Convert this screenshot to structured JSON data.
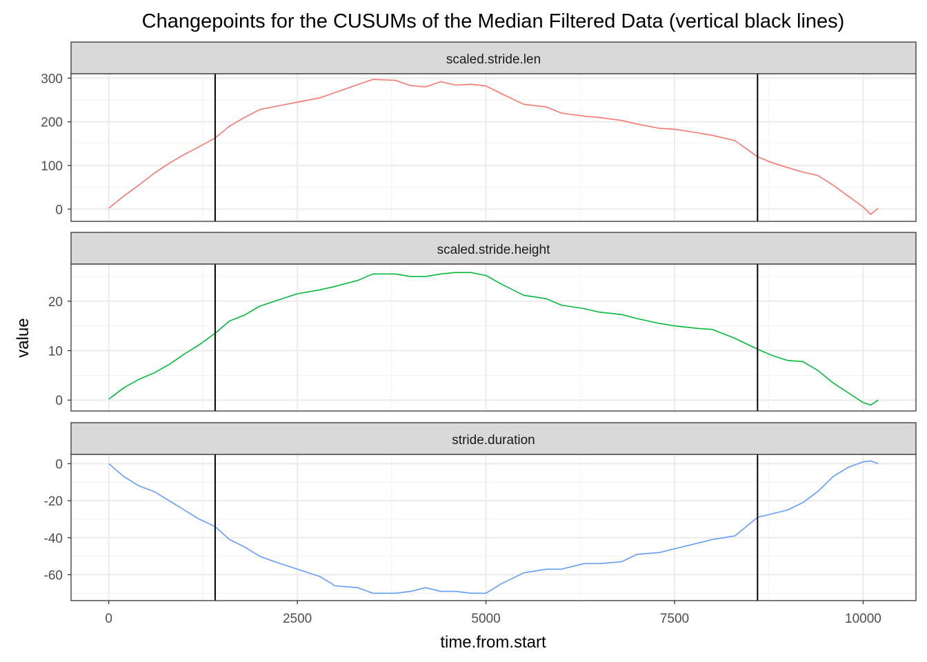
{
  "chart_data": {
    "type": "line",
    "title": "Changepoints for the CUSUMs of the Median Filtered Data (vertical black lines)",
    "xlabel": "time.from.start",
    "ylabel": "value",
    "x_ticks": [
      0,
      2500,
      5000,
      7500,
      10000
    ],
    "xlim": [
      -500,
      10700
    ],
    "changepoints": [
      1410,
      8600
    ],
    "grid": true,
    "theme": "bw",
    "facets": [
      {
        "name": "scaled.stride.len",
        "color": "#F8766D",
        "ylim": [
          -28,
          310
        ],
        "y_ticks": [
          0,
          100,
          200,
          300
        ],
        "x": [
          0,
          200,
          400,
          600,
          800,
          1000,
          1200,
          1410,
          1600,
          1800,
          2000,
          2200,
          2500,
          2800,
          3000,
          3300,
          3500,
          3800,
          4000,
          4200,
          4400,
          4600,
          4800,
          5000,
          5200,
          5500,
          5800,
          6000,
          6300,
          6500,
          6800,
          7000,
          7300,
          7500,
          7800,
          8000,
          8300,
          8600,
          8800,
          9000,
          9200,
          9400,
          9600,
          9800,
          10000,
          10100,
          10200
        ],
        "y": [
          2,
          30,
          55,
          82,
          105,
          125,
          143,
          163,
          190,
          210,
          228,
          235,
          245,
          255,
          267,
          285,
          297,
          295,
          283,
          280,
          292,
          284,
          286,
          282,
          265,
          240,
          234,
          220,
          213,
          210,
          203,
          195,
          185,
          183,
          175,
          169,
          157,
          120,
          106,
          95,
          85,
          77,
          55,
          30,
          5,
          -12,
          2
        ]
      },
      {
        "name": "scaled.stride.height",
        "color": "#00BA38",
        "ylim": [
          -2.2,
          27.5
        ],
        "y_ticks": [
          0,
          10,
          20
        ],
        "x": [
          0,
          200,
          400,
          600,
          800,
          1000,
          1200,
          1410,
          1600,
          1800,
          2000,
          2200,
          2500,
          2800,
          3000,
          3300,
          3500,
          3800,
          4000,
          4200,
          4400,
          4600,
          4800,
          5000,
          5200,
          5500,
          5800,
          6000,
          6300,
          6500,
          6800,
          7000,
          7300,
          7500,
          7800,
          8000,
          8300,
          8600,
          8800,
          9000,
          9200,
          9400,
          9600,
          9800,
          10000,
          10100,
          10200
        ],
        "y": [
          0.2,
          2.5,
          4.2,
          5.5,
          7.2,
          9.3,
          11.2,
          13.5,
          16,
          17.2,
          19,
          20,
          21.5,
          22.3,
          23,
          24.2,
          25.5,
          25.5,
          25,
          25,
          25.5,
          25.8,
          25.8,
          25.2,
          23.5,
          21.2,
          20.5,
          19.2,
          18.5,
          17.8,
          17.3,
          16.5,
          15.5,
          15,
          14.5,
          14.3,
          12.5,
          10.3,
          9,
          8,
          7.8,
          6,
          3.5,
          1.5,
          -0.5,
          -1,
          0
        ]
      },
      {
        "name": "stride.duration",
        "color": "#619CFF",
        "ylim": [
          -74,
          5
        ],
        "y_ticks": [
          0,
          -20,
          -40,
          -60
        ],
        "x": [
          0,
          200,
          400,
          600,
          800,
          1000,
          1200,
          1410,
          1600,
          1800,
          2000,
          2200,
          2500,
          2800,
          3000,
          3300,
          3500,
          3800,
          4000,
          4200,
          4400,
          4600,
          4800,
          5000,
          5200,
          5500,
          5800,
          6000,
          6300,
          6500,
          6800,
          7000,
          7300,
          7500,
          7800,
          8000,
          8300,
          8600,
          8800,
          9000,
          9200,
          9400,
          9600,
          9800,
          10000,
          10100,
          10200
        ],
        "y": [
          0,
          -7,
          -12,
          -15,
          -20,
          -25,
          -30,
          -34,
          -41,
          -45,
          -50,
          -53,
          -57,
          -61,
          -66,
          -67,
          -70,
          -70,
          -69,
          -67,
          -69,
          -69,
          -70,
          -70,
          -65,
          -59,
          -57,
          -57,
          -54,
          -54,
          -53,
          -49,
          -48,
          -46,
          -43,
          -41,
          -39,
          -29,
          -27,
          -25,
          -21,
          -15,
          -7,
          -2,
          1,
          1.5,
          0
        ]
      }
    ]
  }
}
